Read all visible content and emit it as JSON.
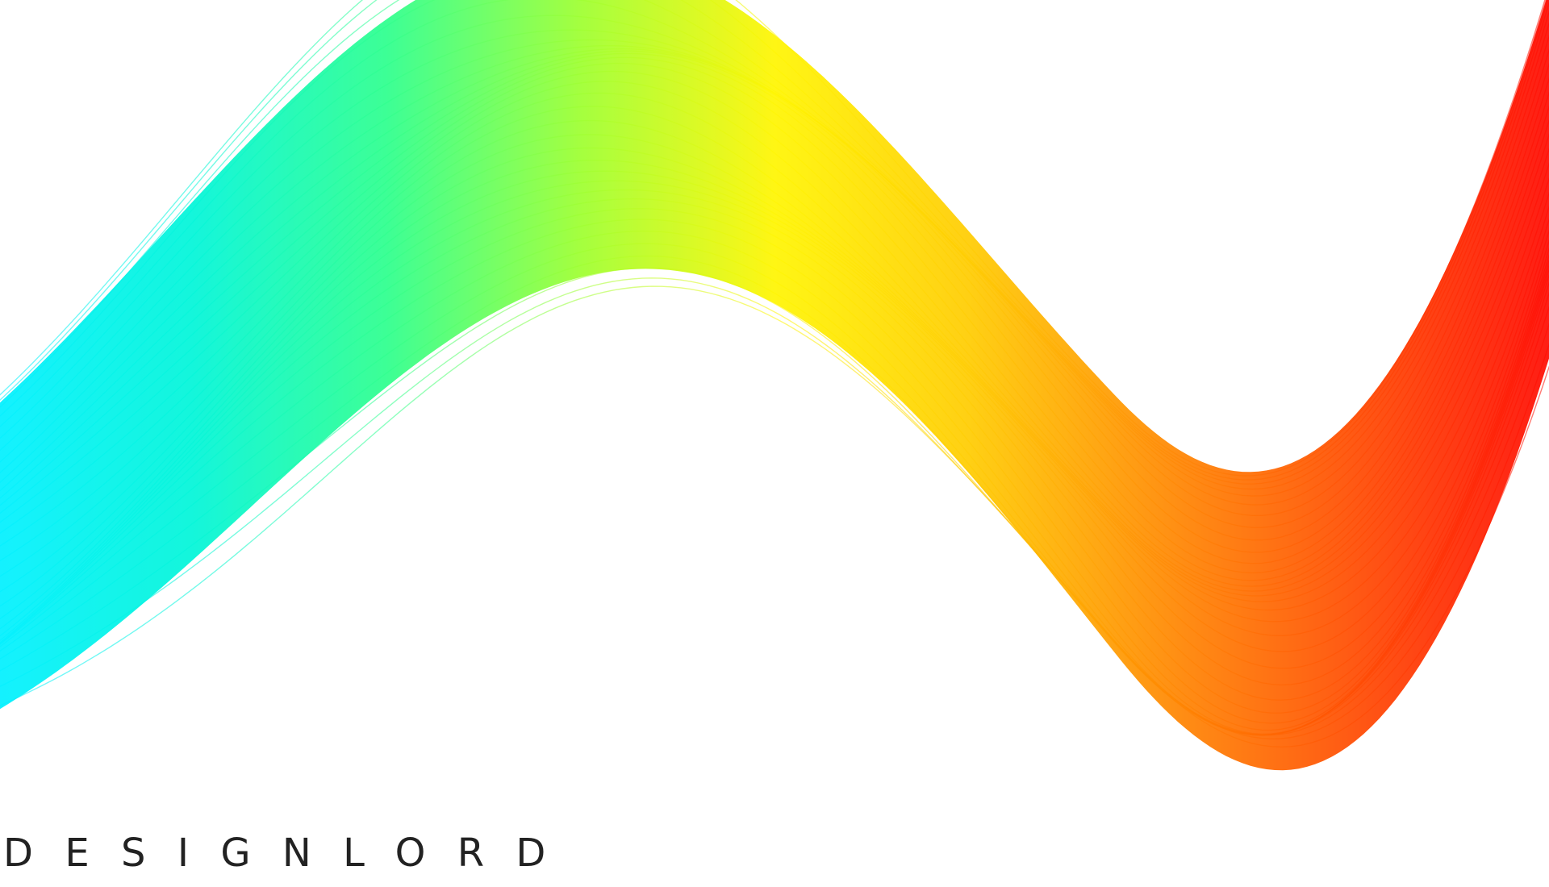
{
  "artwork": {
    "name": "rainbow-wave-ribbon",
    "gradient_colors": [
      "#00f0ff",
      "#00f5d8",
      "#2cff8c",
      "#9dff2e",
      "#fff500",
      "#ffcc00",
      "#ff8a00",
      "#ff4a00",
      "#ff0a00"
    ],
    "background_color": "#ffffff"
  },
  "brand": {
    "wordmark": "DESIGNLORD",
    "text_color": "#222222"
  }
}
